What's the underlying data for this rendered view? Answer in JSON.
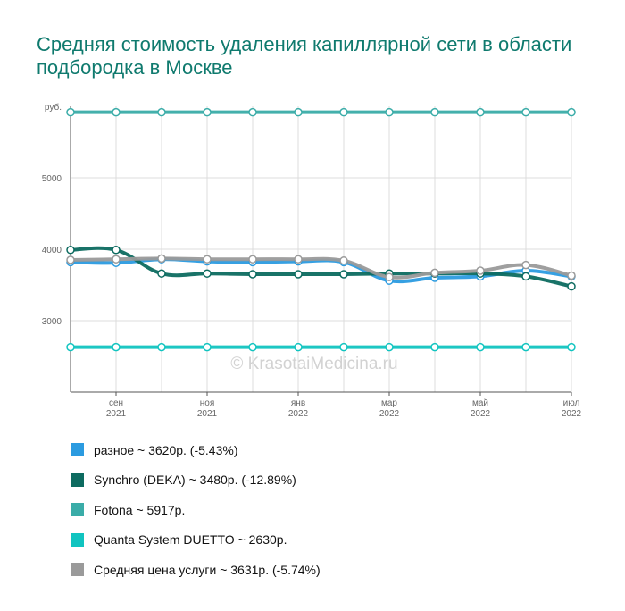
{
  "title": "Средняя стоимость удаления капиллярной сети в области подбородка в Москве",
  "watermark": "© KrasotaiMedicina.ru",
  "chart_data": {
    "type": "line",
    "y_unit": "руб.",
    "yticks": [
      3000,
      4000,
      5000
    ],
    "ylim": [
      2000,
      6000
    ],
    "grid": true,
    "x": [
      "2021-08",
      "2021-09",
      "2021-10",
      "2021-11",
      "2021-12",
      "2022-01",
      "2022-02",
      "2022-03",
      "2022-04",
      "2022-05",
      "2022-06",
      "2022-07"
    ],
    "x_tick_labels": [
      {
        "x": "2021-09",
        "month": "сен",
        "year": "2021"
      },
      {
        "x": "2021-11",
        "month": "ноя",
        "year": "2021"
      },
      {
        "x": "2022-01",
        "month": "янв",
        "year": "2022"
      },
      {
        "x": "2022-03",
        "month": "мар",
        "year": "2022"
      },
      {
        "x": "2022-05",
        "month": "май",
        "year": "2022"
      },
      {
        "x": "2022-07",
        "month": "июл",
        "year": "2022"
      }
    ],
    "series": [
      {
        "name": "Fotona",
        "color": "#3aaca8",
        "values": [
          5917,
          5917,
          5917,
          5917,
          5917,
          5917,
          5917,
          5917,
          5917,
          5917,
          5917,
          5917
        ]
      },
      {
        "name": "Quanta System DUETTO",
        "color": "#11c4c0",
        "values": [
          2630,
          2630,
          2630,
          2630,
          2630,
          2630,
          2630,
          2630,
          2630,
          2630,
          2630,
          2630
        ]
      },
      {
        "name": "разное",
        "color": "#2b9be0",
        "values": [
          3820,
          3810,
          3860,
          3830,
          3820,
          3830,
          3820,
          3560,
          3600,
          3620,
          3700,
          3620
        ]
      },
      {
        "name": "Synchro (DEKA)",
        "color": "#0d6b60",
        "values": [
          3990,
          3990,
          3660,
          3660,
          3650,
          3650,
          3650,
          3660,
          3660,
          3660,
          3620,
          3480
        ]
      },
      {
        "name": "Средняя цена услуги",
        "color": "#9a9a9a",
        "values": [
          3850,
          3860,
          3870,
          3860,
          3860,
          3860,
          3840,
          3610,
          3670,
          3700,
          3780,
          3631
        ]
      }
    ],
    "legend": [
      {
        "label": "разное ~ 3620р. (-5.43%)",
        "color": "#2b9be0"
      },
      {
        "label": "Synchro (DEKA) ~ 3480р. (-12.89%)",
        "color": "#0d6b60"
      },
      {
        "label": "Fotona ~ 5917р.",
        "color": "#3aaca8"
      },
      {
        "label": "Quanta System DUETTO ~ 2630р.",
        "color": "#11c4c0"
      },
      {
        "label": "Средняя цена услуги ~ 3631р. (-5.74%)",
        "color": "#9a9a9a"
      }
    ],
    "legend_position": "bottom"
  }
}
